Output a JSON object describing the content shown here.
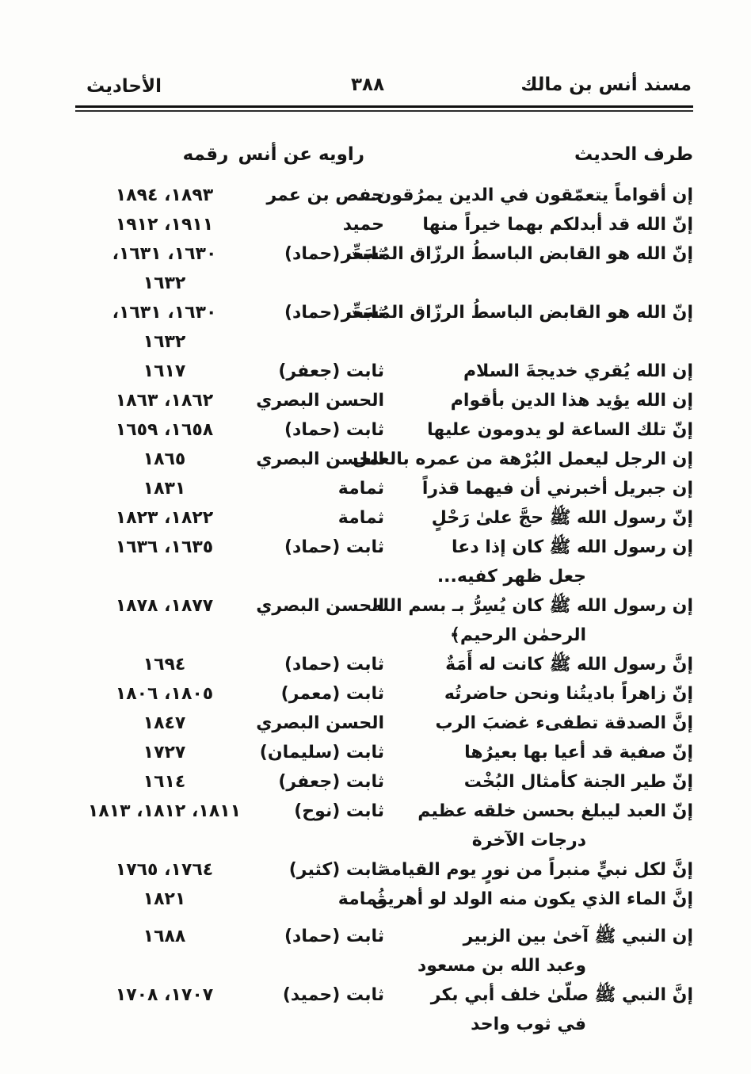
{
  "header": {
    "book_title": "مسند أنس بن مالك",
    "page_number": "٣٨٨",
    "section_title": "الأحاديث"
  },
  "columns": {
    "hadith": "طرف الحديث",
    "narrator": "راويه عن أنس",
    "number": "رقمه"
  },
  "rows": [
    {
      "text": "إن أقواماً يتعمّقون في الدين يمرُقون...",
      "narrator": "حفص بن عمر",
      "numbers": "١٨٩٣، ١٨٩٤"
    },
    {
      "text": "إنّ الله قد أبدلكم بهما خيراً منها",
      "narrator": "حميد",
      "numbers": "١٩١١، ١٩١٢"
    },
    {
      "text": "إنّ الله هو القابض الباسطُ الرزّاق المُسَعِّر",
      "narrator": "ثابت (حماد)",
      "numbers": "١٦٣٠، ١٦٣١،\n١٦٣٢"
    },
    {
      "text": "إنّ الله هو القابض الباسطُ الرزّاق المُسَعِّر",
      "narrator": "ثابت (حماد)",
      "numbers": "١٦٣٠، ١٦٣١،\n١٦٣٢"
    },
    {
      "text": "إن الله يُقري خديجةَ السلام",
      "narrator": "ثابت (جعفر)",
      "numbers": "١٦١٧"
    },
    {
      "text": "إن الله يؤيد هذا الدين بأقوام",
      "narrator": "الحسن البصري",
      "numbers": "١٨٦٢، ١٨٦٣"
    },
    {
      "text": "إنّ تلك الساعة لو يدومون عليها",
      "narrator": "ثابت (حماد)",
      "numbers": "١٦٥٨، ١٦٥٩"
    },
    {
      "text": "إن الرجل ليعمل البُرْهة من عمره بالعمل",
      "narrator": "الحسن البصري",
      "numbers": "١٨٦٥"
    },
    {
      "text": "إن جبريل أخبرني أن فيهما قذراً",
      "narrator": "ثمامة",
      "numbers": "١٨٣١"
    },
    {
      "text": "إنّ رسول الله ﷺ حجَّ علىٰ رَحْلٍ",
      "narrator": "ثمامة",
      "numbers": "١٨٢٢، ١٨٢٣"
    },
    {
      "text": "إن رسول الله ﷺ كان إذا دعا\nجعل ظهر كفيه...",
      "narrator": "ثابت (حماد)",
      "numbers": "١٦٣٥، ١٦٣٦"
    },
    {
      "text": "إن رسول الله ﷺ كان يُسِرُّ بـ بسم الله\nالرحمٰن الرحيم﴾",
      "narrator": "الحسن البصري",
      "numbers": "١٨٧٧، ١٨٧٨"
    },
    {
      "text": "إنَّ رسول الله ﷺ كانت له أَمَةٌ",
      "narrator": "ثابت (حماد)",
      "numbers": "١٦٩٤"
    },
    {
      "text": "إنّ زاهراً باديتُنا ونحن حاضرتُه",
      "narrator": "ثابت (معمر)",
      "numbers": "١٨٠٥، ١٨٠٦"
    },
    {
      "text": "إنَّ الصدقة تطفىء غضبَ الرب",
      "narrator": "الحسن البصري",
      "numbers": "١٨٤٧"
    },
    {
      "text": "إنّ صفية قد أعيا بها بعيرُها",
      "narrator": "ثابت (سليمان)",
      "numbers": "١٧٢٧"
    },
    {
      "text": "إنّ طير الجنة كأمثال البُخْت",
      "narrator": "ثابت (جعفر)",
      "numbers": "١٦١٤"
    },
    {
      "text": "إنّ العبد ليبلغ بحسن خلقه عظيم\nدرجات الآخرة",
      "narrator": "ثابت (نوح)",
      "numbers": "١٨١١، ١٨١٢، ١٨١٣"
    },
    {
      "text": "إنَّ لكل نبيٍّ منبراً من نورٍ يوم القيامة",
      "narrator": "ثابت (كثير)",
      "numbers": "١٧٦٤، ١٧٦٥"
    },
    {
      "text": "إنَّ الماء الذي يكون منه الولد لو أهريق",
      "narrator": "ثُمامة",
      "numbers": "١٨٢١"
    },
    {
      "text": "إن النبي ﷺ آخىٰ بين الزبير\nوعبد الله بن مسعود",
      "narrator": "ثابت (حماد)",
      "numbers": "١٦٨٨"
    },
    {
      "text": "إنَّ النبي ﷺ صلّىٰ خلف أبي بكر\nفي ثوب واحد",
      "narrator": "ثابت (حميد)",
      "numbers": "١٧٠٧، ١٧٠٨"
    }
  ]
}
